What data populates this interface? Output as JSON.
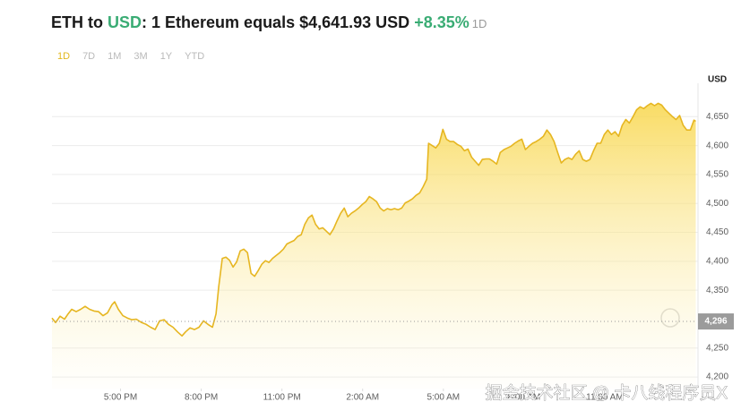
{
  "chart_data": {
    "type": "area",
    "title_prefix": "ETH to",
    "title_link": "USD",
    "title_rest": ": 1 Ethereum equals $4,641.93 USD",
    "change": "+8.35%",
    "period": "1D",
    "ranges": [
      "1D",
      "7D",
      "1M",
      "3M",
      "1Y",
      "YTD"
    ],
    "active_range": 0,
    "y_axis_label": "USD",
    "color": "#e6b621",
    "change_color": "#3aac74",
    "grid": true,
    "watermark": "掘金技术社区 @ 卡八线程序员X",
    "reference": {
      "value": 4296,
      "label": "4,296"
    },
    "xlim": [
      147,
      1584
    ],
    "xticks": [
      {
        "value": 300,
        "label": "5:00 PM"
      },
      {
        "value": 480,
        "label": "8:00 PM"
      },
      {
        "value": 660,
        "label": "11:00 PM"
      },
      {
        "value": 840,
        "label": "2:00 AM"
      },
      {
        "value": 1020,
        "label": "5:00 AM"
      },
      {
        "value": 1200,
        "label": "8:00 AM"
      },
      {
        "value": 1380,
        "label": "11:00 AM"
      }
    ],
    "ylim": [
      4180,
      4700
    ],
    "yticks": [
      {
        "value": 4200,
        "label": "4,200"
      },
      {
        "value": 4250,
        "label": "4,250"
      },
      {
        "value": 4350,
        "label": "4,350"
      },
      {
        "value": 4400,
        "label": "4,400"
      },
      {
        "value": 4450,
        "label": "4,450"
      },
      {
        "value": 4500,
        "label": "4,500"
      },
      {
        "value": 4550,
        "label": "4,550"
      },
      {
        "value": 4600,
        "label": "4,600"
      },
      {
        "value": 4650,
        "label": "4,650"
      }
    ],
    "x": [
      147,
      155,
      165,
      175,
      183,
      191,
      201,
      211,
      221,
      231,
      241,
      251,
      261,
      271,
      281,
      287,
      295,
      305,
      315,
      325,
      335,
      347,
      357,
      367,
      377,
      387,
      397,
      407,
      417,
      427,
      437,
      445,
      455,
      465,
      475,
      485,
      495,
      505,
      513,
      519,
      527,
      535,
      543,
      551,
      559,
      567,
      575,
      583,
      591,
      599,
      607,
      615,
      623,
      631,
      639,
      647,
      655,
      663,
      671,
      679,
      687,
      695,
      703,
      711,
      719,
      727,
      735,
      743,
      751,
      759,
      767,
      775,
      783,
      791,
      799,
      807,
      815,
      823,
      831,
      839,
      847,
      855,
      863,
      871,
      879,
      887,
      895,
      903,
      911,
      919,
      927,
      935,
      943,
      951,
      959,
      967,
      975,
      983,
      987,
      995,
      1003,
      1011,
      1019,
      1027,
      1035,
      1043,
      1051,
      1059,
      1067,
      1075,
      1083,
      1091,
      1099,
      1107,
      1115,
      1123,
      1131,
      1139,
      1147,
      1155,
      1163,
      1171,
      1179,
      1187,
      1195,
      1203,
      1211,
      1219,
      1227,
      1235,
      1243,
      1251,
      1259,
      1267,
      1275,
      1283,
      1291,
      1299,
      1307,
      1315,
      1323,
      1331,
      1339,
      1347,
      1355,
      1363,
      1371,
      1379,
      1387,
      1395,
      1403,
      1411,
      1419,
      1427,
      1435,
      1443,
      1451,
      1459,
      1467,
      1475,
      1483,
      1491,
      1499,
      1507,
      1515,
      1523,
      1531,
      1539,
      1547,
      1555,
      1563,
      1571,
      1579,
      1583
    ],
    "values": [
      4302,
      4294,
      4305,
      4300,
      4309,
      4317,
      4313,
      4317,
      4322,
      4317,
      4314,
      4313,
      4306,
      4311,
      4325,
      4330,
      4317,
      4306,
      4302,
      4299,
      4300,
      4294,
      4291,
      4286,
      4282,
      4297,
      4299,
      4291,
      4286,
      4278,
      4271,
      4278,
      4285,
      4282,
      4286,
      4297,
      4291,
      4286,
      4309,
      4356,
      4405,
      4407,
      4402,
      4390,
      4399,
      4418,
      4421,
      4415,
      4379,
      4374,
      4384,
      4395,
      4401,
      4398,
      4405,
      4410,
      4415,
      4421,
      4430,
      4433,
      4436,
      4443,
      4446,
      4464,
      4475,
      4480,
      4464,
      4456,
      4458,
      4452,
      4446,
      4456,
      4470,
      4483,
      4492,
      4477,
      4483,
      4487,
      4492,
      4498,
      4503,
      4512,
      4508,
      4503,
      4492,
      4487,
      4491,
      4489,
      4491,
      4489,
      4492,
      4501,
      4504,
      4508,
      4514,
      4518,
      4529,
      4542,
      4604,
      4600,
      4596,
      4604,
      4628,
      4611,
      4607,
      4607,
      4602,
      4599,
      4591,
      4594,
      4580,
      4573,
      4566,
      4576,
      4577,
      4577,
      4573,
      4568,
      4588,
      4593,
      4596,
      4599,
      4604,
      4608,
      4611,
      4593,
      4599,
      4604,
      4607,
      4611,
      4616,
      4627,
      4619,
      4607,
      4588,
      4570,
      4576,
      4579,
      4576,
      4585,
      4591,
      4576,
      4573,
      4576,
      4591,
      4604,
      4604,
      4619,
      4627,
      4619,
      4624,
      4616,
      4635,
      4645,
      4639,
      4650,
      4662,
      4667,
      4664,
      4669,
      4673,
      4669,
      4673,
      4670,
      4662,
      4656,
      4650,
      4645,
      4652,
      4635,
      4627,
      4627,
      4644,
      4642
    ]
  }
}
